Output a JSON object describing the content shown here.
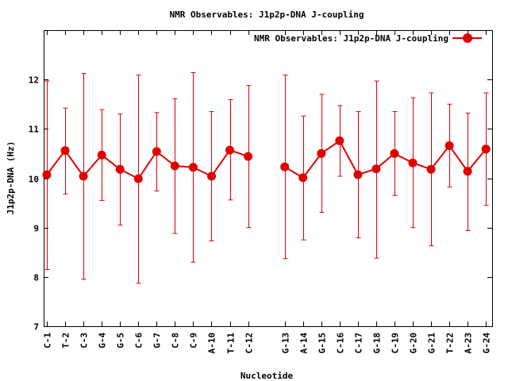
{
  "chart_data": {
    "type": "line",
    "title": "NMR Observables: J1p2p-DNA J-coupling",
    "xlabel": "Nucleotide",
    "ylabel": "J1p2p-DNA (Hz)",
    "ylim": [
      7,
      13
    ],
    "yticks": [
      7,
      8,
      9,
      10,
      11,
      12
    ],
    "grid": false,
    "legend_position": "top-right",
    "categories": [
      "C-1",
      "T-2",
      "C-3",
      "G-4",
      "G-5",
      "C-6",
      "G-7",
      "C-8",
      "C-9",
      "A-10",
      "T-11",
      "C-12",
      "G-13",
      "A-14",
      "G-15",
      "C-16",
      "C-17",
      "G-18",
      "C-19",
      "G-20",
      "G-21",
      "T-22",
      "A-23",
      "G-24"
    ],
    "series": [
      {
        "name": "NMR Observables: J1p2p-DNA J-coupling",
        "color": "#e00000",
        "segments": [
          [
            0,
            11
          ],
          [
            12,
            23
          ]
        ],
        "values": [
          10.07,
          10.56,
          10.04,
          10.47,
          10.18,
          9.99,
          10.54,
          10.25,
          10.22,
          10.04,
          10.57,
          10.44,
          10.23,
          10.01,
          10.5,
          10.76,
          10.07,
          10.19,
          10.5,
          10.31,
          10.18,
          10.66,
          10.14,
          10.59
        ],
        "err_low": [
          8.15,
          9.68,
          7.95,
          9.55,
          9.05,
          7.87,
          9.74,
          8.88,
          8.3,
          8.73,
          9.56,
          9.0,
          8.37,
          8.75,
          9.31,
          10.04,
          8.79,
          8.38,
          9.65,
          9.0,
          8.63,
          9.82,
          8.94,
          9.45
        ],
        "err_high": [
          11.97,
          11.42,
          12.12,
          11.39,
          11.3,
          12.09,
          11.33,
          11.61,
          12.14,
          11.35,
          11.59,
          11.88,
          12.09,
          11.26,
          11.7,
          11.47,
          11.35,
          11.97,
          11.35,
          11.63,
          11.73,
          11.5,
          11.32,
          11.73
        ]
      }
    ]
  }
}
